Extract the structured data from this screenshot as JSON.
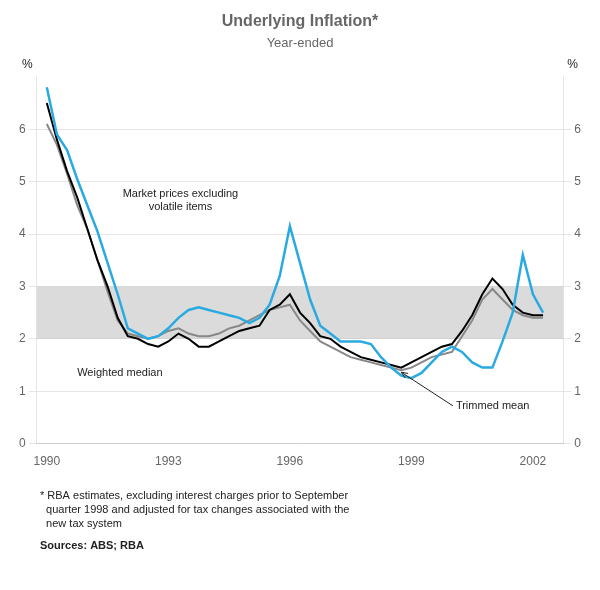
{
  "chart_data": {
    "type": "line",
    "title": "Underlying Inflation*",
    "subtitle": "Year-ended",
    "ylabel": "%",
    "y2label": "%",
    "x": [
      1990.0,
      1990.25,
      1990.5,
      1990.75,
      1991.0,
      1991.25,
      1991.5,
      1991.75,
      1992.0,
      1992.25,
      1992.5,
      1992.75,
      1993.0,
      1993.25,
      1993.5,
      1993.75,
      1994.0,
      1994.25,
      1994.5,
      1994.75,
      1995.0,
      1995.25,
      1995.5,
      1995.75,
      1996.0,
      1996.25,
      1996.5,
      1996.75,
      1997.0,
      1997.25,
      1997.5,
      1997.75,
      1998.0,
      1998.25,
      1998.5,
      1998.75,
      1999.0,
      1999.25,
      1999.5,
      1999.75,
      2000.0,
      2000.25,
      2000.5,
      2000.75,
      2001.0,
      2001.25,
      2001.5,
      2001.75,
      2002.0,
      2002.25
    ],
    "series": [
      {
        "name": "Trimmed mean",
        "color": "#888888",
        "values": [
          6.1,
          5.7,
          5.15,
          4.55,
          4.1,
          3.5,
          2.9,
          2.35,
          2.1,
          2.05,
          2.0,
          2.05,
          2.15,
          2.2,
          2.1,
          2.05,
          2.05,
          2.1,
          2.2,
          2.25,
          2.35,
          2.45,
          2.55,
          2.6,
          2.65,
          2.35,
          2.15,
          1.95,
          1.85,
          1.75,
          1.65,
          1.6,
          1.55,
          1.5,
          1.45,
          1.4,
          1.45,
          1.55,
          1.65,
          1.7,
          1.75,
          2.05,
          2.35,
          2.75,
          2.95,
          2.75,
          2.55,
          2.45,
          2.4,
          2.4
        ]
      },
      {
        "name": "Weighted median",
        "color": "#000000",
        "values": [
          6.5,
          5.8,
          5.2,
          4.7,
          4.1,
          3.5,
          3.0,
          2.4,
          2.05,
          2.0,
          1.9,
          1.85,
          1.95,
          2.1,
          2.0,
          1.85,
          1.85,
          1.95,
          2.05,
          2.15,
          2.2,
          2.25,
          2.55,
          2.65,
          2.85,
          2.5,
          2.3,
          2.05,
          2.0,
          1.85,
          1.75,
          1.65,
          1.6,
          1.55,
          1.5,
          1.45,
          1.55,
          1.65,
          1.75,
          1.85,
          1.9,
          2.15,
          2.45,
          2.85,
          3.15,
          2.95,
          2.65,
          2.5,
          2.45,
          2.45
        ]
      },
      {
        "name": "Market prices excluding\nvolatile items",
        "color": "#29abe2",
        "values": [
          6.8,
          5.9,
          5.6,
          5.05,
          4.55,
          4.05,
          3.45,
          2.85,
          2.2,
          2.1,
          2.0,
          2.05,
          2.2,
          2.4,
          2.55,
          2.6,
          2.55,
          2.5,
          2.45,
          2.4,
          2.3,
          2.4,
          2.65,
          3.2,
          4.15,
          3.45,
          2.75,
          2.25,
          2.1,
          1.95,
          1.95,
          1.95,
          1.9,
          1.65,
          1.45,
          1.3,
          1.25,
          1.35,
          1.55,
          1.75,
          1.85,
          1.75,
          1.55,
          1.45,
          1.45,
          1.95,
          2.5,
          3.6,
          2.85,
          2.5
        ]
      }
    ],
    "xlim": [
      1989.75,
      2002.75
    ],
    "xticks": [
      1990,
      1993,
      1996,
      1999,
      2002
    ],
    "ylim": [
      0,
      7
    ],
    "yticks": [
      0,
      1,
      2,
      3,
      4,
      5,
      6
    ],
    "y2lim": [
      0,
      7
    ],
    "y2ticks": [
      0,
      1,
      2,
      3,
      4,
      5,
      6
    ],
    "grid": "y",
    "band": {
      "from": 2.0,
      "to": 3.0,
      "color": "#b0b0b0"
    },
    "notes": [
      "* RBA estimates, excluding interest charges prior to September\n  quarter 1998 and adjusted for tax changes associated with the\n  new tax system",
      "Sources: ABS; RBA"
    ]
  }
}
